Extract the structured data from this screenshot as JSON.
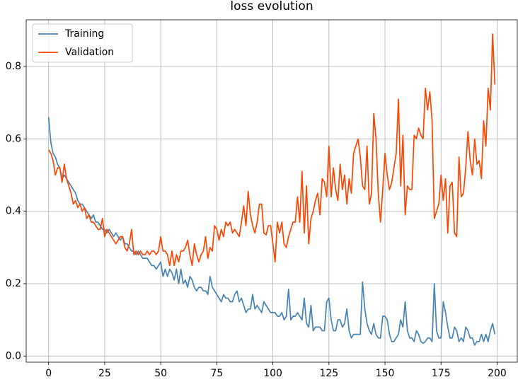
{
  "chart_data": {
    "type": "line",
    "title": "loss evolution",
    "x": [
      0,
      1,
      2,
      3,
      4,
      5,
      6,
      7,
      8,
      9,
      10,
      11,
      12,
      13,
      14,
      15,
      16,
      17,
      18,
      19,
      20,
      21,
      22,
      23,
      24,
      25,
      26,
      27,
      28,
      29,
      30,
      31,
      32,
      33,
      34,
      35,
      36,
      37,
      38,
      39,
      40,
      41,
      42,
      43,
      44,
      45,
      46,
      47,
      48,
      49,
      50,
      51,
      52,
      53,
      54,
      55,
      56,
      57,
      58,
      59,
      60,
      61,
      62,
      63,
      64,
      65,
      66,
      67,
      68,
      69,
      70,
      71,
      72,
      73,
      74,
      75,
      76,
      77,
      78,
      79,
      80,
      81,
      82,
      83,
      84,
      85,
      86,
      87,
      88,
      89,
      90,
      91,
      92,
      93,
      94,
      95,
      96,
      97,
      98,
      99,
      100,
      101,
      102,
      103,
      104,
      105,
      106,
      107,
      108,
      109,
      110,
      111,
      112,
      113,
      114,
      115,
      116,
      117,
      118,
      119,
      120,
      121,
      122,
      123,
      124,
      125,
      126,
      127,
      128,
      129,
      130,
      131,
      132,
      133,
      134,
      135,
      136,
      137,
      138,
      139,
      140,
      141,
      142,
      143,
      144,
      145,
      146,
      147,
      148,
      149,
      150,
      151,
      152,
      153,
      154,
      155,
      156,
      157,
      158,
      159,
      160,
      161,
      162,
      163,
      164,
      165,
      166,
      167,
      168,
      169,
      170,
      171,
      172,
      173,
      174,
      175,
      176,
      177,
      178,
      179,
      180,
      181,
      182,
      183,
      184,
      185,
      186,
      187,
      188,
      189,
      190,
      191,
      192,
      193,
      194,
      195,
      196,
      197,
      198,
      199
    ],
    "series": [
      {
        "name": "Training",
        "color": "#4682b4",
        "values": [
          0.66,
          0.59,
          0.56,
          0.55,
          0.53,
          0.52,
          0.49,
          0.5,
          0.49,
          0.48,
          0.47,
          0.46,
          0.45,
          0.43,
          0.42,
          0.42,
          0.41,
          0.4,
          0.39,
          0.38,
          0.39,
          0.37,
          0.37,
          0.36,
          0.35,
          0.35,
          0.34,
          0.35,
          0.34,
          0.33,
          0.34,
          0.33,
          0.32,
          0.33,
          0.31,
          0.31,
          0.3,
          0.29,
          0.29,
          0.28,
          0.29,
          0.28,
          0.27,
          0.27,
          0.27,
          0.26,
          0.25,
          0.25,
          0.24,
          0.25,
          0.26,
          0.22,
          0.24,
          0.22,
          0.24,
          0.23,
          0.21,
          0.24,
          0.2,
          0.24,
          0.2,
          0.21,
          0.19,
          0.22,
          0.21,
          0.19,
          0.18,
          0.19,
          0.19,
          0.18,
          0.18,
          0.17,
          0.22,
          0.19,
          0.18,
          0.17,
          0.16,
          0.15,
          0.17,
          0.16,
          0.16,
          0.15,
          0.15,
          0.17,
          0.18,
          0.15,
          0.16,
          0.14,
          0.12,
          0.13,
          0.13,
          0.17,
          0.13,
          0.14,
          0.13,
          0.12,
          0.15,
          0.14,
          0.13,
          0.12,
          0.12,
          0.12,
          0.11,
          0.11,
          0.12,
          0.1,
          0.11,
          0.185,
          0.1,
          0.11,
          0.11,
          0.12,
          0.11,
          0.1,
          0.16,
          0.09,
          0.08,
          0.14,
          0.07,
          0.08,
          0.08,
          0.08,
          0.07,
          0.07,
          0.15,
          0.16,
          0.1,
          0.07,
          0.07,
          0.1,
          0.1,
          0.08,
          0.09,
          0.13,
          0.07,
          0.05,
          0.06,
          0.06,
          0.06,
          0.06,
          0.205,
          0.13,
          0.09,
          0.07,
          0.06,
          0.09,
          0.06,
          0.05,
          0.05,
          0.11,
          0.11,
          0.1,
          0.06,
          0.04,
          0.04,
          0.05,
          0.06,
          0.1,
          0.08,
          0.15,
          0.07,
          0.05,
          0.05,
          0.04,
          0.07,
          0.06,
          0.04,
          0.035,
          0.04,
          0.05,
          0.05,
          0.04,
          0.2,
          0.07,
          0.05,
          0.05,
          0.15,
          0.12,
          0.08,
          0.05,
          0.05,
          0.08,
          0.07,
          0.04,
          0.05,
          0.04,
          0.08,
          0.07,
          0.05,
          0.05,
          0.03,
          0.04,
          0.04,
          0.06,
          0.04,
          0.06,
          0.04,
          0.07,
          0.09,
          0.06
        ]
      },
      {
        "name": "Validation",
        "color": "#ff4500",
        "values": [
          0.57,
          0.56,
          0.54,
          0.5,
          0.52,
          0.52,
          0.48,
          0.53,
          0.49,
          0.47,
          0.45,
          0.42,
          0.43,
          0.41,
          0.42,
          0.4,
          0.41,
          0.38,
          0.39,
          0.37,
          0.37,
          0.36,
          0.35,
          0.35,
          0.38,
          0.33,
          0.35,
          0.34,
          0.33,
          0.32,
          0.31,
          0.32,
          0.33,
          0.33,
          0.3,
          0.29,
          0.31,
          0.35,
          0.28,
          0.29,
          0.28,
          0.29,
          0.28,
          0.28,
          0.29,
          0.28,
          0.29,
          0.29,
          0.28,
          0.29,
          0.33,
          0.29,
          0.29,
          0.28,
          0.25,
          0.29,
          0.25,
          0.28,
          0.26,
          0.29,
          0.29,
          0.3,
          0.32,
          0.28,
          0.25,
          0.31,
          0.28,
          0.26,
          0.28,
          0.29,
          0.33,
          0.27,
          0.3,
          0.29,
          0.36,
          0.35,
          0.32,
          0.35,
          0.33,
          0.37,
          0.36,
          0.37,
          0.34,
          0.35,
          0.34,
          0.33,
          0.37,
          0.415,
          0.36,
          0.455,
          0.39,
          0.36,
          0.34,
          0.37,
          0.42,
          0.42,
          0.34,
          0.335,
          0.36,
          0.36,
          0.31,
          0.26,
          0.37,
          0.34,
          0.37,
          0.31,
          0.3,
          0.33,
          0.35,
          0.37,
          0.37,
          0.44,
          0.37,
          0.51,
          0.34,
          0.47,
          0.31,
          0.38,
          0.4,
          0.43,
          0.45,
          0.39,
          0.49,
          0.48,
          0.44,
          0.58,
          0.44,
          0.52,
          0.46,
          0.43,
          0.53,
          0.46,
          0.5,
          0.42,
          0.49,
          0.45,
          0.56,
          0.58,
          0.6,
          0.55,
          0.47,
          0.46,
          0.58,
          0.42,
          0.45,
          0.67,
          0.6,
          0.45,
          0.37,
          0.46,
          0.56,
          0.5,
          0.46,
          0.48,
          0.52,
          0.56,
          0.71,
          0.47,
          0.61,
          0.39,
          0.47,
          0.46,
          0.46,
          0.61,
          0.6,
          0.63,
          0.61,
          0.6,
          0.74,
          0.68,
          0.73,
          0.65,
          0.38,
          0.4,
          0.42,
          0.5,
          0.43,
          0.49,
          0.34,
          0.47,
          0.48,
          0.34,
          0.33,
          0.55,
          0.44,
          0.45,
          0.52,
          0.62,
          0.54,
          0.5,
          0.6,
          0.53,
          0.54,
          0.49,
          0.65,
          0.58,
          0.74,
          0.68,
          0.89,
          0.75
        ]
      }
    ],
    "xlim": [
      -10,
      209
    ],
    "xticks": [
      0,
      25,
      50,
      75,
      100,
      125,
      150,
      175,
      200
    ],
    "ylim": [
      -0.017,
      0.929
    ],
    "yticks": [
      {
        "value": 0,
        "label": "0.0"
      },
      {
        "value": 0.2,
        "label": "0.2"
      },
      {
        "value": 0.4,
        "label": "0.4"
      },
      {
        "value": 0.6,
        "label": "0.6"
      },
      {
        "value": 0.8,
        "label": "0.8"
      }
    ],
    "grid": true,
    "legend": "upper left"
  }
}
